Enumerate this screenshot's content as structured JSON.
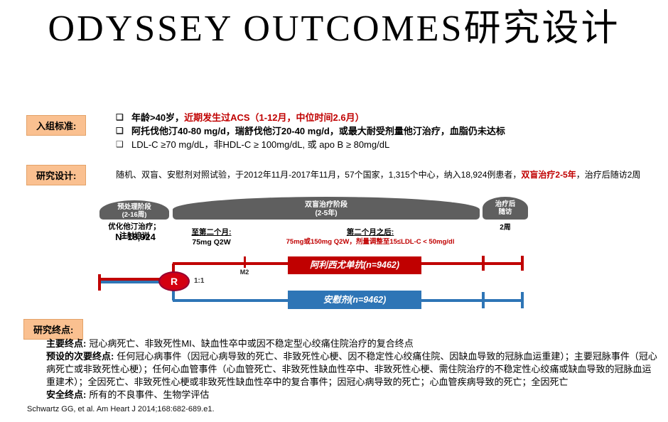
{
  "colors": {
    "accent_red": "#C00000",
    "arm_blue": "#2E75B6",
    "phase_gray": "#5F5F5F",
    "label_bg": "#FAC090"
  },
  "title": "ODYSSEY OUTCOMES研究设计",
  "criteria": {
    "label": "入组标准:",
    "bullet_glyph": "❑",
    "bullets": [
      {
        "black": "年龄>40岁，",
        "red": "近期发生过ACS（1-12月，中位时间2.6月）"
      },
      {
        "black": "阿托伐他汀40-80 mg/d，瑞舒伐他汀20-40 mg/d，或最大耐受剂量他汀治疗，血脂仍未达标",
        "red": ""
      },
      {
        "black": "LDL-C ≥70 mg/dL，非HDL-C ≥ 100mg/dL, 或 apo B ≥ 80mg/dL",
        "red": ""
      }
    ]
  },
  "design": {
    "label": "研究设计:",
    "text_before": "随机、双盲、安慰剂对照试验，于2012年11月-2017年11月，57个国家，1,315个中心，纳入18,924例患者，",
    "text_red": "双盲治疗2-5年",
    "text_after": "，治疗后随访2周"
  },
  "diagram": {
    "phase1_title": "预处理阶段",
    "phase1_sub": "(2-16周)",
    "phase1_note_line1": "优化他汀治疗；",
    "phase1_note_line2": "注射培训",
    "phase2_title": "双盲治疗阶段",
    "phase2_sub": "(2-5年)",
    "phase3_line1": "治疗后",
    "phase3_line2": "随访",
    "phase3_duration": "2周",
    "dose1_title": "至第二个月:",
    "dose1_value": "75mg Q2W",
    "dose2_title": "第二个月之后:",
    "dose2_value": "75mg或150mg Q2W，剂量调整至15≤LDL-C < 50mg/dl",
    "n_label": "N=18,924",
    "randomization": "R",
    "ratio": "1:1",
    "m2": "M2",
    "arm_red": "阿利西尤单抗(n=9462)",
    "arm_blue": "安慰剂(n=9462)"
  },
  "endpoints": {
    "label": "研究终点:",
    "primary_label": "主要终点:",
    "primary_text": "冠心病死亡、非致死性MI、缺血性卒中或因不稳定型心绞痛住院治疗的复合终点",
    "secondary_label": "预设的次要终点:",
    "secondary_text": "任何冠心病事件（因冠心病导致的死亡、非致死性心梗、因不稳定性心绞痛住院、因缺血导致的冠脉血运重建）；主要冠脉事件（冠心病死亡或非致死性心梗）；任何心血管事件（心血管死亡、非致死性缺血性卒中、非致死性心梗、需住院治疗的不稳定性心绞痛或缺血导致的冠脉血运重建术）；全因死亡、非致死性心梗或非致死性缺血性卒中的复合事件；因冠心病导致的死亡；心血管疾病导致的死亡；全因死亡",
    "safety_label": "安全终点:",
    "safety_text": "所有的不良事件、生物学评估"
  },
  "citation": "Schwartz GG, et al. Am Heart J 2014;168:682-689.e1."
}
